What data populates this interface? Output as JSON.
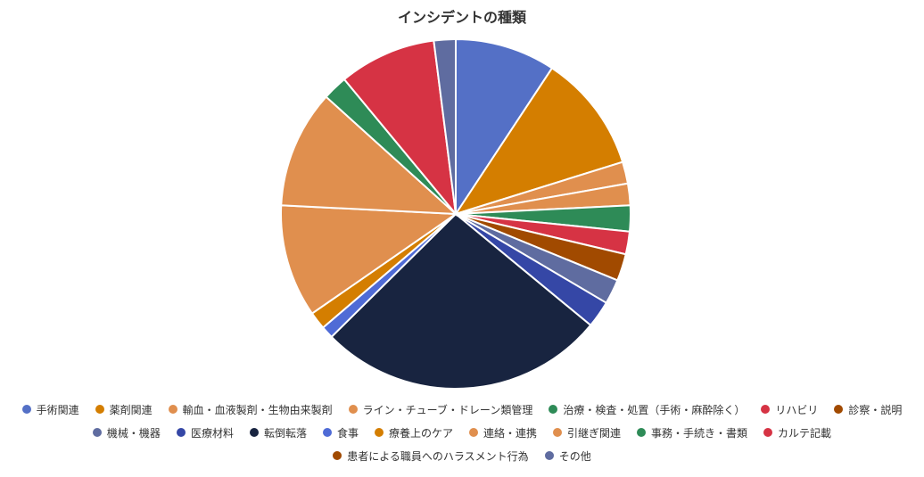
{
  "chart_data": {
    "type": "pie",
    "title": "インシデントの種類",
    "start_angle_deg": 0,
    "direction": "clockwise",
    "legend_position": "bottom",
    "categories": [
      "手術関連",
      "薬剤関連",
      "輸血・血液製剤・生物由来製剤",
      "ライン・チューブ・ドレーン類管理",
      "治療・検査・処置（手術・麻酔除く）",
      "リハビリ",
      "診察・説明",
      "機械・機器",
      "医療材料",
      "転倒転落",
      "食事",
      "療養上のケア",
      "連絡・連携",
      "引継ぎ関連",
      "事務・手続き・書類",
      "カルテ記載",
      "患者による職員へのハラスメント行為",
      "その他"
    ],
    "values": [
      9.7,
      11.4,
      2.1,
      2.1,
      2.5,
      2.2,
      2.6,
      2.4,
      2.6,
      27.8,
      1.2,
      1.7,
      10.9,
      11.4,
      2.4,
      9.4,
      0,
      2.1
    ],
    "colors": [
      "#5470c6",
      "#d47e00",
      "#e08f4e",
      "#e08f4e",
      "#2e8b57",
      "#d63344",
      "#a14a00",
      "#5f6ca0",
      "#3547a6",
      "#182440",
      "#4f6bd6",
      "#d47e00",
      "#e08f4e",
      "#e08f4e",
      "#2e8b57",
      "#d63344",
      "#a14a00",
      "#5f6ca0"
    ]
  }
}
